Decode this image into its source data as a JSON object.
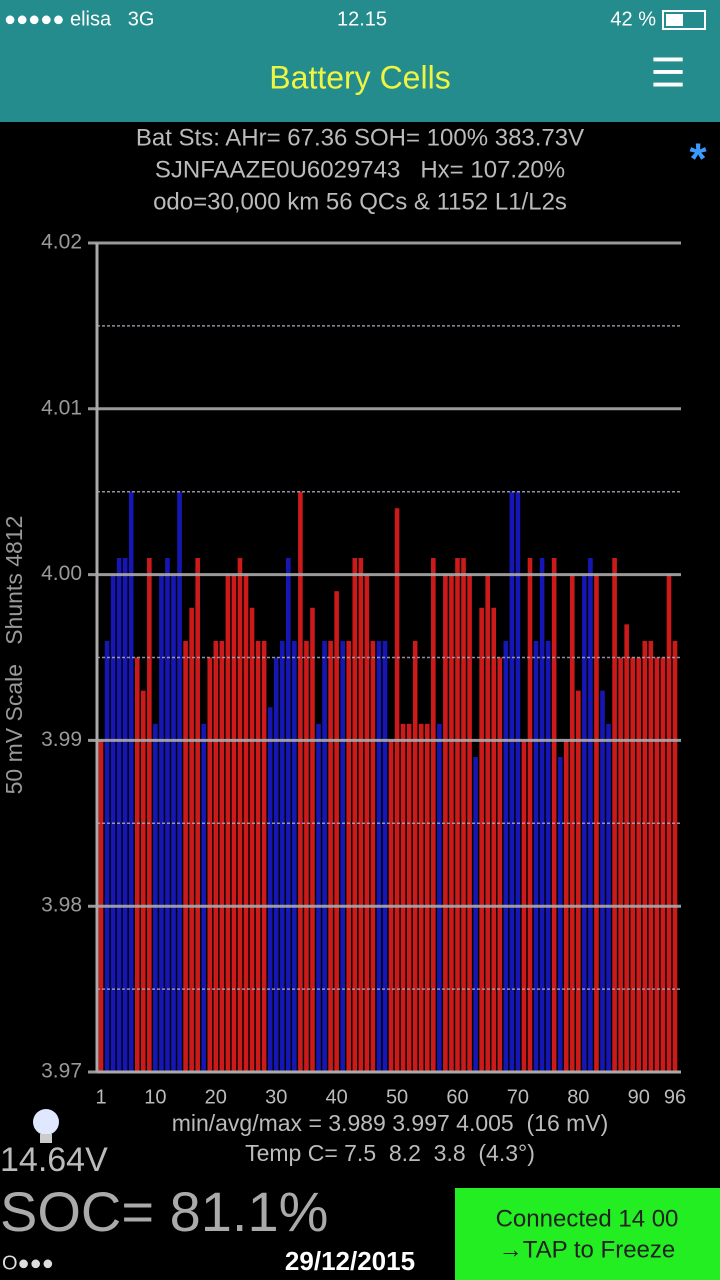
{
  "status_bar": {
    "carrier": "●●●●● elisa   3G",
    "time": "12.15",
    "battery": "42 %"
  },
  "header": {
    "title": "Battery Cells",
    "menu": "☰"
  },
  "info": {
    "lines": [
      "Bat Sts: AHr= 67.36 SOH= 100% 383.73V",
      "SJNFAAZE0U6029743   Hx= 107.20%",
      "odo=30,000 km 56 QCs & 1152 L1/L2s"
    ],
    "marker": "*"
  },
  "chart_data": {
    "type": "bar",
    "ylabel": "50 mV Scale   Shunts 4812",
    "categories": [
      1,
      null,
      null,
      null,
      null,
      null,
      null,
      null,
      null,
      10,
      null,
      null,
      null,
      null,
      null,
      null,
      null,
      null,
      null,
      20,
      null,
      null,
      null,
      null,
      null,
      null,
      null,
      null,
      null,
      30,
      null,
      null,
      null,
      null,
      null,
      null,
      null,
      null,
      null,
      40,
      null,
      null,
      null,
      null,
      null,
      null,
      null,
      null,
      null,
      50,
      null,
      null,
      null,
      null,
      null,
      null,
      null,
      null,
      null,
      60,
      null,
      null,
      null,
      null,
      null,
      null,
      null,
      null,
      null,
      70,
      null,
      null,
      null,
      null,
      null,
      null,
      null,
      null,
      null,
      80,
      null,
      null,
      null,
      null,
      null,
      null,
      null,
      null,
      null,
      90,
      null,
      null,
      null,
      null,
      null,
      96
    ],
    "values": [
      3.99,
      3.996,
      4,
      4.001,
      4.001,
      4.005,
      3.995,
      3.993,
      4.001,
      3.991,
      4,
      4.001,
      4,
      4.005,
      3.996,
      3.998,
      4.001,
      3.991,
      3.995,
      3.996,
      3.996,
      4,
      4,
      4.001,
      4,
      3.998,
      3.996,
      3.996,
      3.992,
      3.995,
      3.996,
      4.001,
      3.996,
      4.005,
      3.996,
      3.998,
      3.991,
      3.996,
      3.996,
      3.999,
      3.996,
      3.996,
      4.001,
      4.001,
      4,
      3.996,
      3.996,
      3.996,
      3.99,
      4.004,
      3.991,
      3.991,
      3.996,
      3.991,
      3.991,
      4.001,
      3.991,
      4,
      4,
      4.001,
      4.001,
      4,
      3.989,
      3.998,
      4,
      3.998,
      3.995,
      3.996,
      4.005,
      4.005,
      3.99,
      4.001,
      3.996,
      4.001,
      3.996,
      4.001,
      3.989,
      3.99,
      4,
      3.993,
      4,
      4.001,
      4,
      3.993,
      3.991,
      4.001,
      3.995,
      3.997,
      3.995,
      3.995,
      3.996,
      3.996,
      3.995,
      3.995,
      4,
      3.996
    ],
    "colors": [
      "#cc1a1a",
      "#1616b4",
      "#1616b4",
      "#1616b4",
      "#1616b4",
      "#1616b4",
      "#cc1a1a",
      "#cc1a1a",
      "#cc1a1a",
      "#1616b4",
      "#1616b4",
      "#1616b4",
      "#1616b4",
      "#1616b4",
      "#cc1a1a",
      "#cc1a1a",
      "#cc1a1a",
      "#1616b4",
      "#cc1a1a",
      "#cc1a1a",
      "#cc1a1a",
      "#cc1a1a",
      "#cc1a1a",
      "#cc1a1a",
      "#cc1a1a",
      "#cc1a1a",
      "#cc1a1a",
      "#cc1a1a",
      "#1616b4",
      "#1616b4",
      "#1616b4",
      "#1616b4",
      "#1616b4",
      "#cc1a1a",
      "#cc1a1a",
      "#cc1a1a",
      "#1616b4",
      "#1616b4",
      "#cc1a1a",
      "#cc1a1a",
      "#1616b4",
      "#cc1a1a",
      "#cc1a1a",
      "#cc1a1a",
      "#cc1a1a",
      "#cc1a1a",
      "#1616b4",
      "#1616b4",
      "#cc1a1a",
      "#cc1a1a",
      "#cc1a1a",
      "#cc1a1a",
      "#cc1a1a",
      "#cc1a1a",
      "#cc1a1a",
      "#cc1a1a",
      "#1616b4",
      "#cc1a1a",
      "#cc1a1a",
      "#cc1a1a",
      "#cc1a1a",
      "#cc1a1a",
      "#1616b4",
      "#cc1a1a",
      "#cc1a1a",
      "#cc1a1a",
      "#cc1a1a",
      "#1616b4",
      "#1616b4",
      "#1616b4",
      "#cc1a1a",
      "#cc1a1a",
      "#1616b4",
      "#1616b4",
      "#1616b4",
      "#cc1a1a",
      "#1616b4",
      "#cc1a1a",
      "#cc1a1a",
      "#cc1a1a",
      "#1616b4",
      "#1616b4",
      "#cc1a1a",
      "#1616b4",
      "#1616b4",
      "#cc1a1a",
      "#cc1a1a",
      "#cc1a1a",
      "#cc1a1a",
      "#cc1a1a",
      "#cc1a1a",
      "#cc1a1a",
      "#cc1a1a",
      "#cc1a1a",
      "#cc1a1a",
      "#cc1a1a"
    ],
    "ylim": [
      3.97,
      4.02
    ],
    "yticks": [
      3.97,
      3.98,
      3.99,
      {
        "value": 4,
        "label": "4.00"
      },
      4.01,
      4.02
    ],
    "minor_yticks": [
      3.975,
      3.985,
      3.995,
      4.005,
      4.015
    ],
    "grid": true
  },
  "stats": {
    "minmax": "min/avg/max = 3.989 3.997 4.005  (16 mV)",
    "temp": "Temp C= 7.5  8.2  3.8  (4.3°)"
  },
  "footer": {
    "voltage": "14.64V",
    "soc": "SOC= 81.1%",
    "pager": "O●●●",
    "date": "29/12/2015",
    "button": [
      "Connected 14 00",
      "→TAP to Freeze"
    ]
  }
}
